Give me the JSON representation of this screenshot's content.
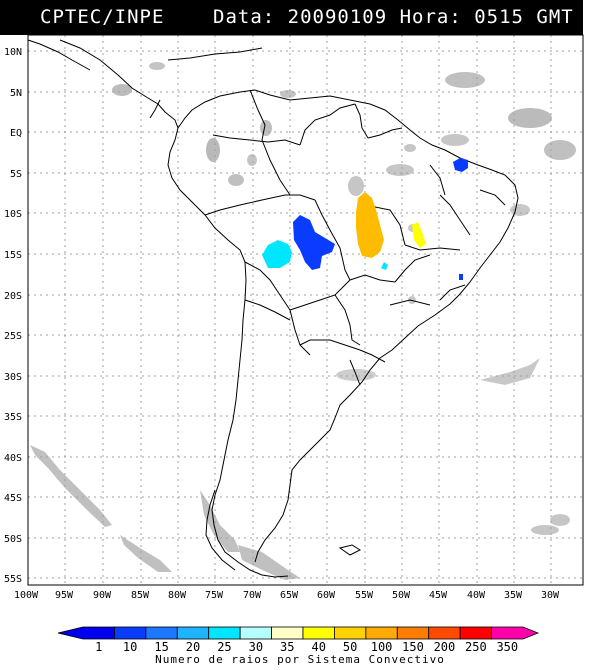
{
  "header": {
    "source": "CPTEC/INPE",
    "datetime": "Data: 20090109 Hora: 0515 GMT"
  },
  "map": {
    "lat_labels": [
      "10N",
      "5N",
      "EQ",
      "5S",
      "10S",
      "15S",
      "20S",
      "25S",
      "30S",
      "35S",
      "40S",
      "45S",
      "50S",
      "55S"
    ],
    "lon_labels": [
      "100W",
      "95W",
      "90W",
      "85W",
      "80W",
      "75W",
      "70W",
      "65W",
      "60W",
      "55W",
      "50W",
      "45W",
      "40W",
      "35W",
      "30W"
    ],
    "grid_color": "#9a9a9a",
    "cloud_color": "#b4b4b4"
  },
  "legend": {
    "values": [
      "1",
      "10",
      "15",
      "20",
      "25",
      "30",
      "35",
      "40",
      "50",
      "100",
      "150",
      "200",
      "250",
      "350"
    ],
    "colors": [
      "#0000ee",
      "#0a3cff",
      "#1e78ff",
      "#1eb4ff",
      "#00e6ff",
      "#b4ffff",
      "#ffffc8",
      "#ffff00",
      "#ffd200",
      "#ffaa00",
      "#ff7d00",
      "#ff4b00",
      "#ff0000",
      "#ff00aa"
    ],
    "title": "Numero de raios por Sistema Convectivo"
  },
  "systems": [
    {
      "name": "sistema-bolivia",
      "color": "#00e6ff"
    },
    {
      "name": "sistema-rondonia",
      "color": "#0a3cff"
    },
    {
      "name": "sistema-mato-grosso",
      "color": "#ffbb00"
    },
    {
      "name": "sistema-tocantins",
      "color": "#ffff00"
    },
    {
      "name": "sistema-nordeste",
      "color": "#0a3cff"
    }
  ]
}
